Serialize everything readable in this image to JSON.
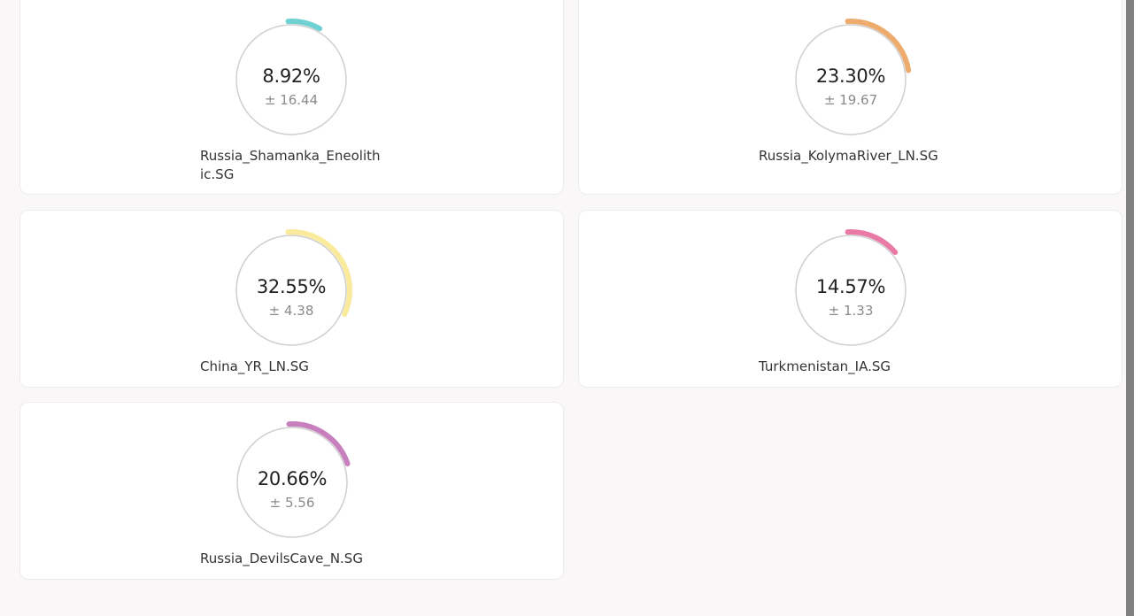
{
  "cards": [
    {
      "name": "Russia_Shamanka_Eneolithic.SG",
      "percent_label": "8.92%",
      "error_label": "± 16.44",
      "value": 8.92,
      "color": "#6fd1d1"
    },
    {
      "name": "Russia_KolymaRiver_LN.SG",
      "percent_label": "23.30%",
      "error_label": "± 19.67",
      "value": 23.3,
      "color": "#eeab6e"
    },
    {
      "name": "China_YR_LN.SG",
      "percent_label": "32.55%",
      "error_label": "± 4.38",
      "value": 32.55,
      "color": "#f9ea9c"
    },
    {
      "name": "Turkmenistan_IA.SG",
      "percent_label": "14.57%",
      "error_label": "± 1.33",
      "value": 14.57,
      "color": "#e97aa6"
    },
    {
      "name": "Russia_DevilsCave_N.SG",
      "percent_label": "20.66%",
      "error_label": "± 5.56",
      "value": 20.66,
      "color": "#c87fbd"
    }
  ]
}
